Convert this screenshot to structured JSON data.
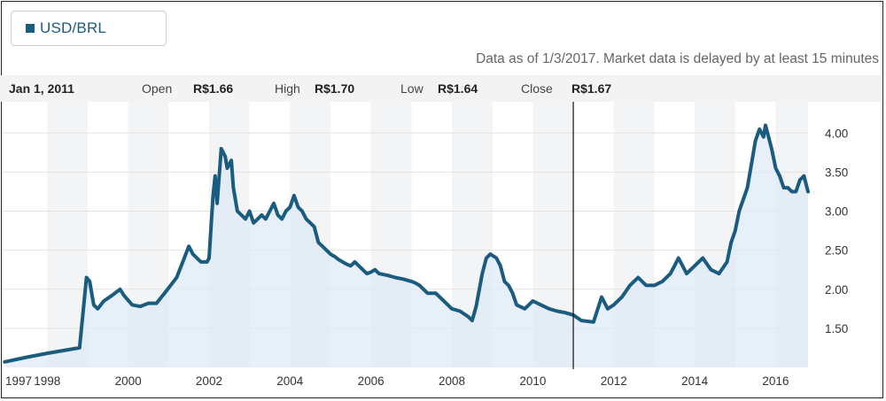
{
  "legend": {
    "label": "USD/BRL",
    "color": "#1a5b80"
  },
  "as_of": "Data as of 1/3/2017. Market data is delayed by at least 15 minutes",
  "hover": {
    "date": "Jan 1, 2011",
    "open_label": "Open",
    "open_value": "R$1.66",
    "high_label": "High",
    "high_value": "R$1.70",
    "low_label": "Low",
    "low_value": "R$1.64",
    "close_label": "Close",
    "close_value": "R$1.67",
    "x": 2011.0
  },
  "chart_data": {
    "type": "area",
    "title": "",
    "xlabel": "",
    "ylabel": "",
    "xlim": [
      1996.9,
      2016.8
    ],
    "ylim": [
      1.0,
      4.4
    ],
    "y_ticks": [
      1.5,
      2.0,
      2.5,
      3.0,
      3.5,
      4.0
    ],
    "y_tick_labels": [
      "1.50",
      "2.00",
      "2.50",
      "3.00",
      "3.50",
      "4.00"
    ],
    "x_ticks": [
      1997,
      1998,
      2000,
      2002,
      2004,
      2006,
      2008,
      2010,
      2012,
      2014,
      2016
    ],
    "x_tick_labels": [
      "1997",
      "1998",
      "2000",
      "2002",
      "2004",
      "2006",
      "2008",
      "2010",
      "2012",
      "2014",
      "2016"
    ],
    "band_years": [
      1998,
      2000,
      2002,
      2004,
      2006,
      2008,
      2010,
      2012,
      2014,
      2016
    ],
    "line_color": "#1a5b80",
    "fill_color": "#dfe9f5",
    "series": [
      {
        "x": [
          1996.95,
          1997.5,
          1998.0,
          1998.8,
          1998.97,
          1999.05,
          1999.15,
          1999.25,
          1999.4,
          1999.6,
          1999.8,
          1999.9,
          2000.1,
          2000.3,
          2000.5,
          2000.7,
          2000.9,
          2001.05,
          2001.2,
          2001.35,
          2001.5,
          2001.6,
          2001.8,
          2001.95,
          2002.0,
          2002.05,
          2002.1,
          2002.15,
          2002.2,
          2002.3,
          2002.4,
          2002.45,
          2002.55,
          2002.6,
          2002.7,
          2002.8,
          2002.9,
          2003.0,
          2003.1,
          2003.2,
          2003.3,
          2003.4,
          2003.5,
          2003.6,
          2003.7,
          2003.8,
          2003.9,
          2004.0,
          2004.1,
          2004.2,
          2004.3,
          2004.4,
          2004.5,
          2004.6,
          2004.7,
          2004.8,
          2004.9,
          2005.0,
          2005.1,
          2005.2,
          2005.3,
          2005.4,
          2005.5,
          2005.6,
          2005.7,
          2005.8,
          2005.9,
          2006.0,
          2006.1,
          2006.2,
          2006.4,
          2006.6,
          2006.8,
          2007.0,
          2007.1,
          2007.2,
          2007.4,
          2007.6,
          2007.8,
          2008.0,
          2008.2,
          2008.4,
          2008.5,
          2008.6,
          2008.75,
          2008.85,
          2008.95,
          2009.1,
          2009.2,
          2009.3,
          2009.4,
          2009.5,
          2009.6,
          2009.8,
          2010.0,
          2010.2,
          2010.4,
          2010.6,
          2010.8,
          2011.0,
          2011.2,
          2011.5,
          2011.7,
          2011.85,
          2012.0,
          2012.2,
          2012.4,
          2012.6,
          2012.8,
          2013.0,
          2013.2,
          2013.4,
          2013.5,
          2013.6,
          2013.8,
          2014.0,
          2014.2,
          2014.4,
          2014.6,
          2014.8,
          2014.9,
          2015.0,
          2015.1,
          2015.2,
          2015.3,
          2015.4,
          2015.5,
          2015.6,
          2015.7,
          2015.75,
          2015.9,
          2016.0,
          2016.1,
          2016.2,
          2016.3,
          2016.4,
          2016.5,
          2016.6,
          2016.7,
          2016.8
        ],
        "values": [
          1.07,
          1.13,
          1.18,
          1.25,
          2.15,
          2.1,
          1.8,
          1.75,
          1.85,
          1.92,
          2.0,
          1.92,
          1.8,
          1.78,
          1.82,
          1.82,
          1.95,
          2.05,
          2.15,
          2.35,
          2.55,
          2.45,
          2.35,
          2.35,
          2.4,
          2.8,
          3.2,
          3.45,
          3.1,
          3.8,
          3.7,
          3.55,
          3.65,
          3.3,
          3.0,
          2.95,
          2.9,
          3.0,
          2.85,
          2.9,
          2.95,
          2.9,
          3.0,
          3.1,
          2.95,
          2.9,
          3.0,
          3.05,
          3.2,
          3.05,
          3.0,
          2.9,
          2.85,
          2.8,
          2.6,
          2.55,
          2.5,
          2.45,
          2.42,
          2.38,
          2.35,
          2.32,
          2.3,
          2.35,
          2.3,
          2.25,
          2.2,
          2.22,
          2.25,
          2.2,
          2.18,
          2.15,
          2.13,
          2.1,
          2.08,
          2.05,
          1.95,
          1.95,
          1.85,
          1.75,
          1.72,
          1.65,
          1.6,
          1.78,
          2.2,
          2.4,
          2.45,
          2.4,
          2.3,
          2.1,
          2.05,
          1.95,
          1.8,
          1.75,
          1.85,
          1.8,
          1.75,
          1.72,
          1.7,
          1.67,
          1.6,
          1.58,
          1.9,
          1.75,
          1.8,
          1.9,
          2.05,
          2.15,
          2.05,
          2.05,
          2.1,
          2.2,
          2.3,
          2.4,
          2.2,
          2.3,
          2.4,
          2.25,
          2.2,
          2.35,
          2.6,
          2.75,
          3.0,
          3.15,
          3.3,
          3.6,
          3.9,
          4.05,
          3.95,
          4.1,
          3.8,
          3.55,
          3.45,
          3.3,
          3.3,
          3.25,
          3.25,
          3.4,
          3.45,
          3.25
        ]
      }
    ]
  }
}
